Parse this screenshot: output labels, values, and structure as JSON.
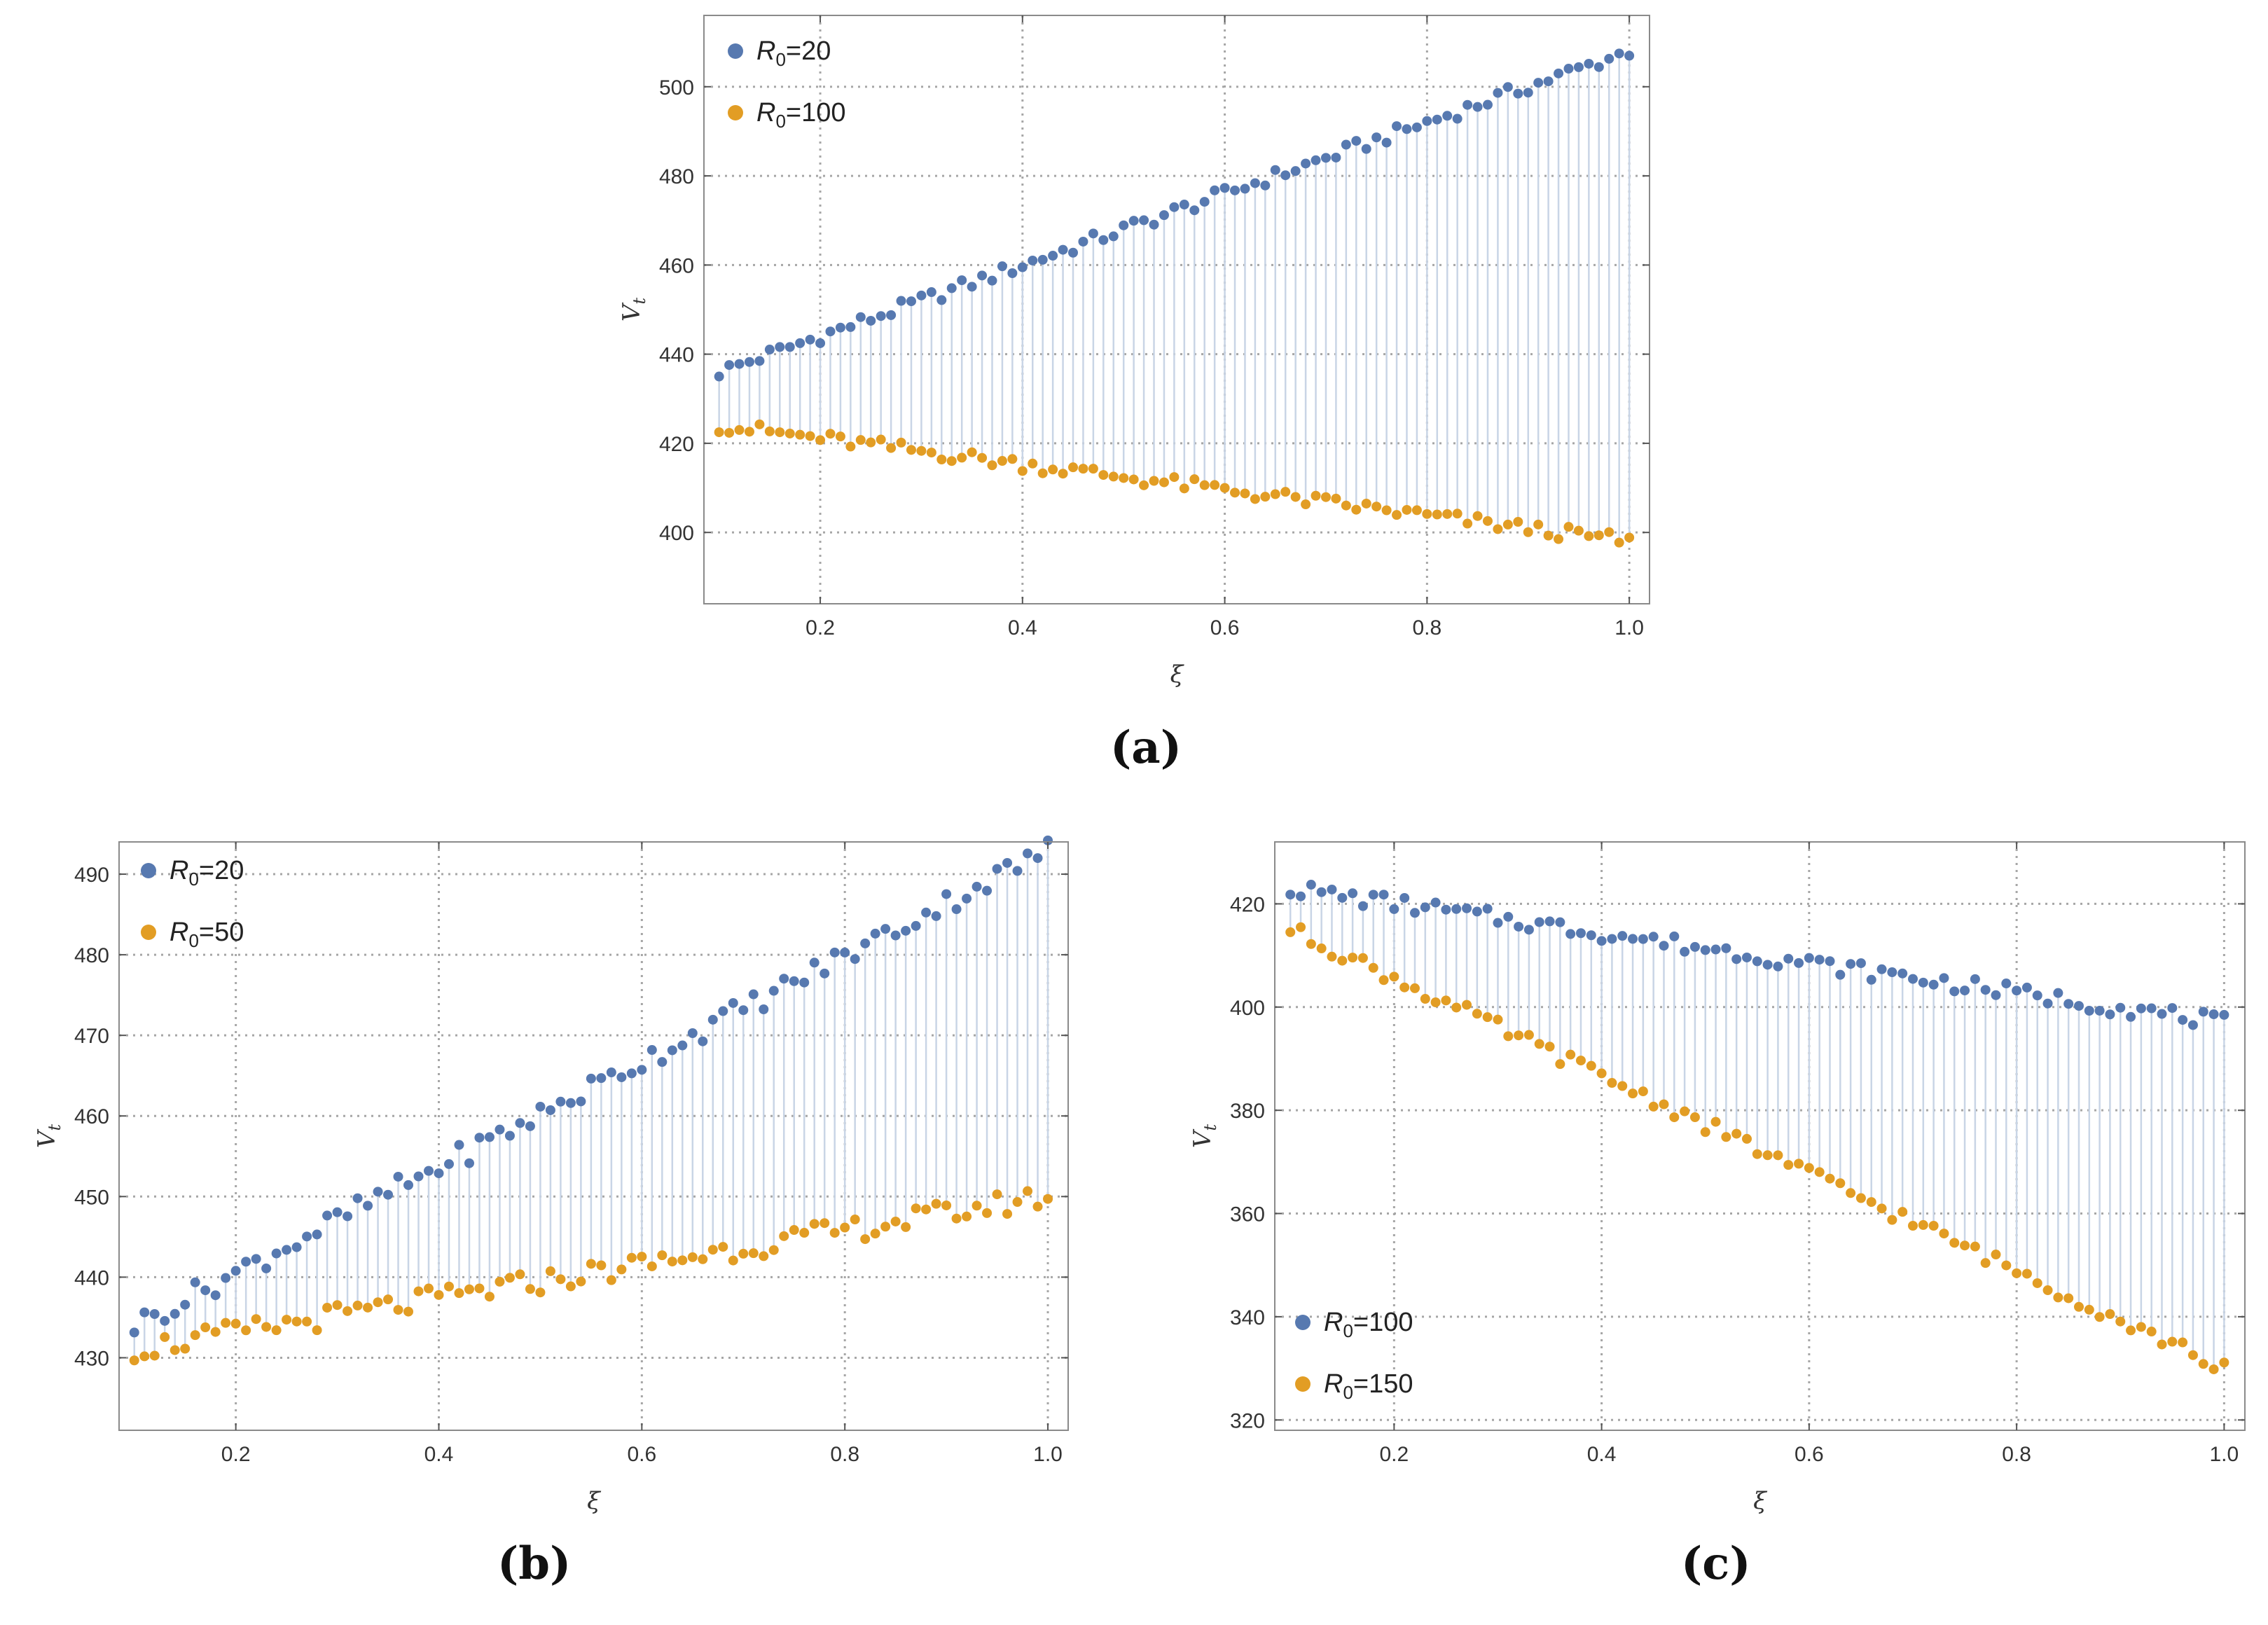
{
  "colors": {
    "series1": "#5779B0",
    "series2": "#E29D24",
    "stem": "#C9D5E6",
    "grid": "#A6A6A6",
    "frame": "#8A8A8A"
  },
  "chart_data": [
    {
      "type": "scatter",
      "panel_label": "(a)",
      "xlabel": "ξ",
      "ylabel_main": "V",
      "ylabel_sub": "t",
      "xlim": [
        0.085,
        1.02
      ],
      "ylim": [
        384,
        516
      ],
      "xticks": [
        0.2,
        0.4,
        0.6,
        0.8,
        1.0
      ],
      "xtick_labels": [
        "0.2",
        "0.4",
        "0.6",
        "0.8",
        "1.0"
      ],
      "yticks": [
        400,
        420,
        440,
        460,
        480,
        500
      ],
      "ytick_labels": [
        "400",
        "420",
        "440",
        "460",
        "480",
        "500"
      ],
      "legend_position": "top-left",
      "x": {
        "start": 0.1,
        "step": 0.01,
        "count": 91
      },
      "series": [
        {
          "name_main": "R",
          "name_sub": "0",
          "name_rest": "=20",
          "start": 436,
          "end": 508,
          "noise": 1.6
        },
        {
          "name_main": "R",
          "name_sub": "0",
          "name_rest": "=100",
          "start": 424,
          "end": 398,
          "noise": 1.6
        }
      ]
    },
    {
      "type": "scatter",
      "panel_label": "(b)",
      "xlabel": "ξ",
      "ylabel_main": "V",
      "ylabel_sub": "t",
      "xlim": [
        0.085,
        1.02
      ],
      "ylim": [
        421,
        494
      ],
      "xticks": [
        0.2,
        0.4,
        0.6,
        0.8,
        1.0
      ],
      "xtick_labels": [
        "0.2",
        "0.4",
        "0.6",
        "0.8",
        "1.0"
      ],
      "yticks": [
        430,
        440,
        450,
        460,
        470,
        480,
        490
      ],
      "ytick_labels": [
        "430",
        "440",
        "450",
        "460",
        "470",
        "480",
        "490"
      ],
      "legend_position": "top-left",
      "x": {
        "start": 0.1,
        "step": 0.01,
        "count": 91
      },
      "series": [
        {
          "name_main": "R",
          "name_sub": "0",
          "name_rest": "=20",
          "start": 434,
          "end": 493,
          "noise": 1.5
        },
        {
          "name_main": "R",
          "name_sub": "0",
          "name_rest": "=50",
          "start": 431,
          "end": 450,
          "noise": 1.5
        }
      ]
    },
    {
      "type": "scatter",
      "panel_label": "(c)",
      "xlabel": "ξ",
      "ylabel_main": "V",
      "ylabel_sub": "t",
      "xlim": [
        0.085,
        1.02
      ],
      "ylim": [
        318,
        432
      ],
      "xticks": [
        0.2,
        0.4,
        0.6,
        0.8,
        1.0
      ],
      "xtick_labels": [
        "0.2",
        "0.4",
        "0.6",
        "0.8",
        "1.0"
      ],
      "yticks": [
        320,
        340,
        360,
        380,
        400,
        420
      ],
      "ytick_labels": [
        "320",
        "340",
        "360",
        "380",
        "400",
        "420"
      ],
      "legend_position": "bottom-left",
      "x": {
        "start": 0.1,
        "step": 0.01,
        "count": 91
      },
      "series": [
        {
          "name_main": "R",
          "name_sub": "0",
          "name_rest": "=100",
          "start": 423,
          "end": 397,
          "noise": 1.6
        },
        {
          "name_main": "R",
          "name_sub": "0",
          "name_rest": "=150",
          "start": 415,
          "end": 330,
          "noise": 1.5
        }
      ]
    }
  ]
}
